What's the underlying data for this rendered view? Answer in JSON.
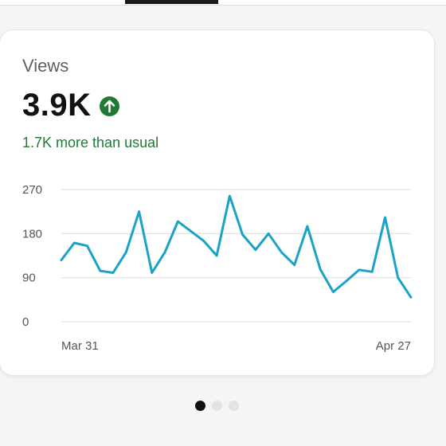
{
  "card": {
    "title": "Views",
    "metric_value": "3.9K",
    "trend_icon": "arrow-up-icon",
    "delta_text": "1.7K more than usual"
  },
  "colors": {
    "line": "#1aa3c6",
    "positive": "#1e7a34",
    "grid": "#e0e0e0"
  },
  "chart_data": {
    "type": "line",
    "y_ticks": [
      "270",
      "180",
      "90",
      "0"
    ],
    "ylim": [
      0,
      270
    ],
    "x_tick_labels": [
      {
        "label": "Mar 31",
        "index": 0
      },
      {
        "label": "Apr 27",
        "index": 27
      }
    ],
    "series": [
      {
        "values": [
          126,
          161,
          155,
          104,
          100,
          142,
          225,
          100,
          142,
          205,
          185,
          165,
          135,
          257,
          178,
          147,
          180,
          142,
          116,
          195,
          107,
          61,
          83,
          106,
          102,
          213,
          90,
          50
        ]
      }
    ],
    "grid": true
  },
  "pager": {
    "dots": 3,
    "active_index": 0
  }
}
